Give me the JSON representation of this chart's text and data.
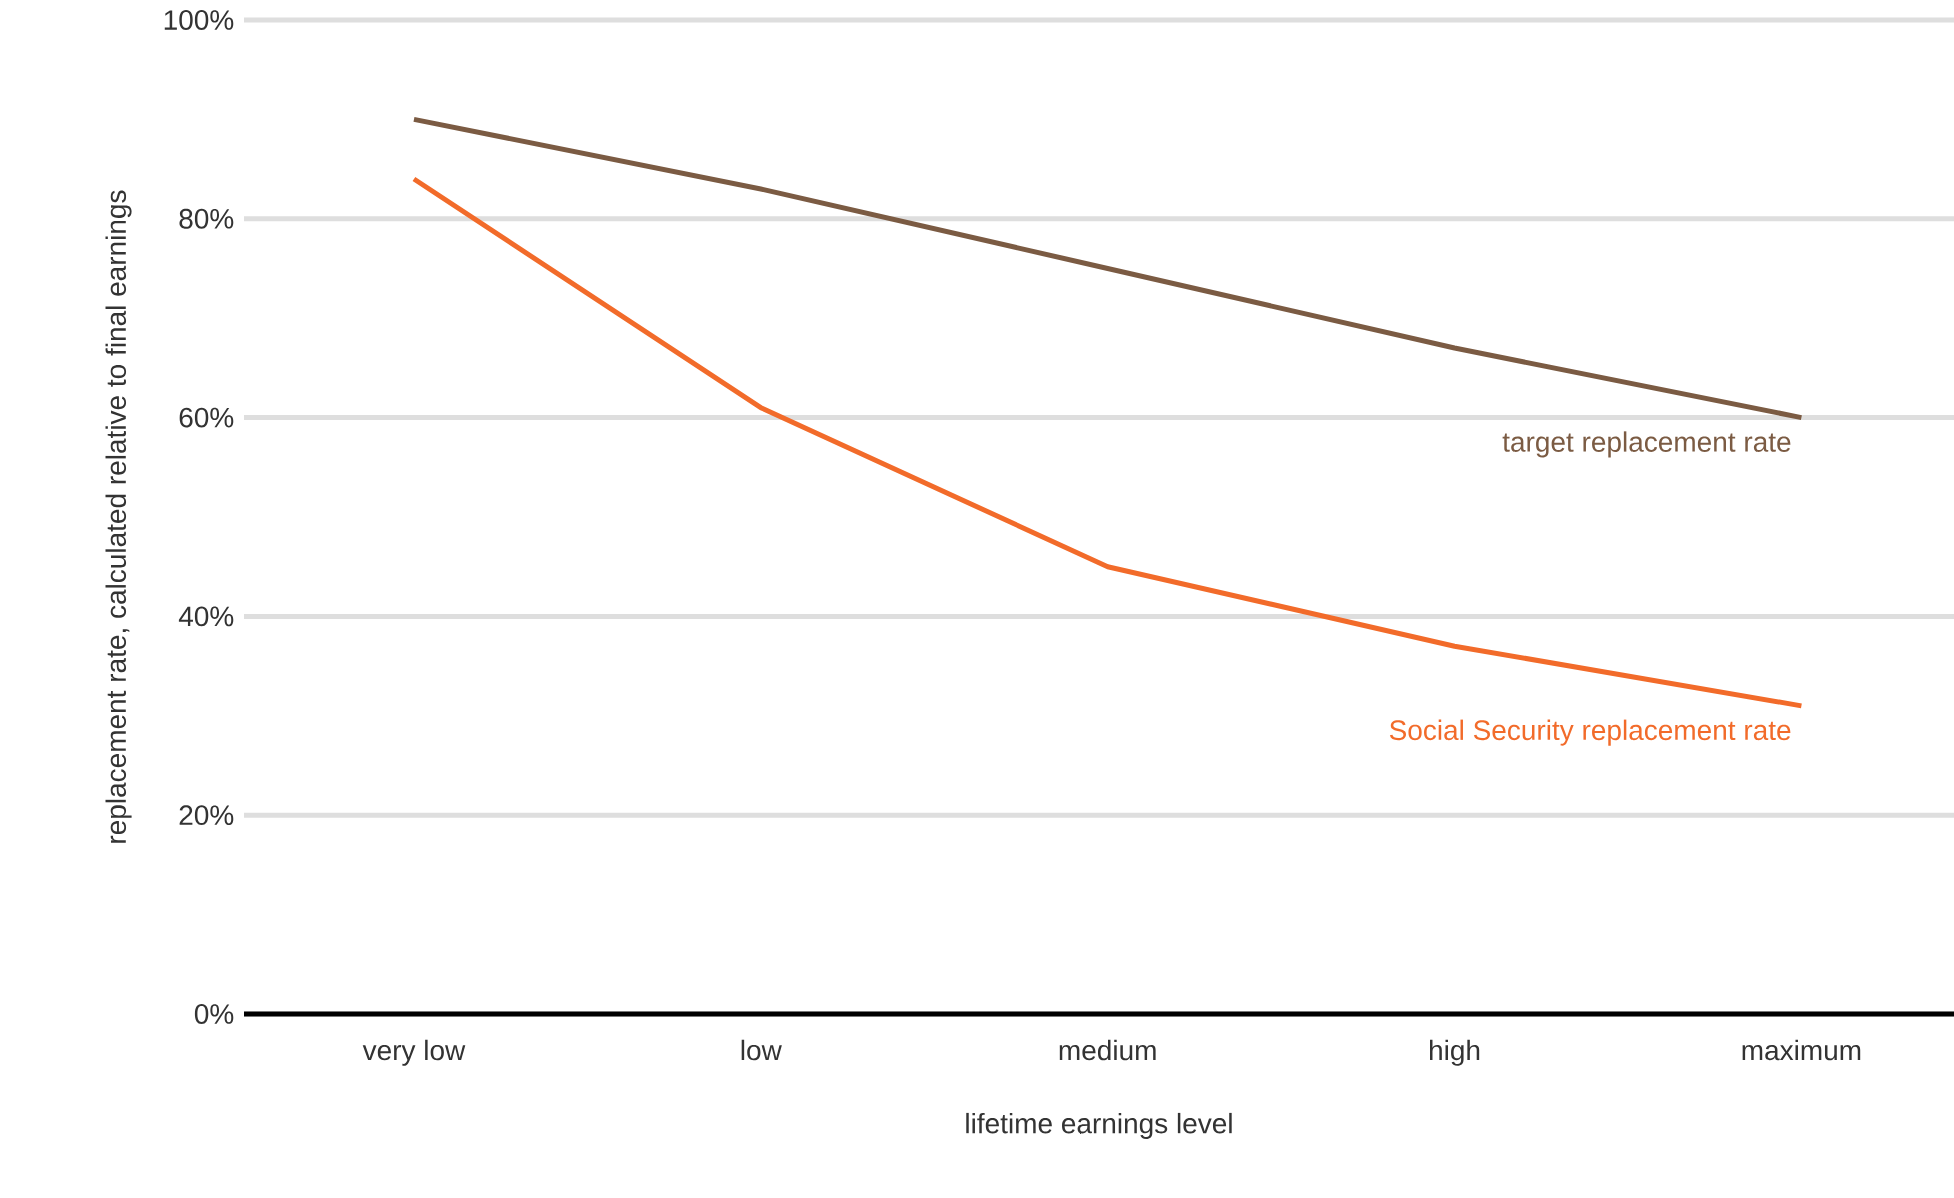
{
  "chart_data": {
    "type": "line",
    "xlabel": "lifetime earnings level",
    "ylabel": "replacement rate, calculated relative to final earnings",
    "categories": [
      "very low",
      "low",
      "medium",
      "high",
      "maximum"
    ],
    "series": [
      {
        "name": "target replacement rate",
        "color": "#7b5b43",
        "values": [
          90,
          83,
          75,
          67,
          60
        ]
      },
      {
        "name": "Social Security replacement rate",
        "color": "#f26b2a",
        "values": [
          84,
          61,
          45,
          37,
          31
        ]
      }
    ],
    "ylim": [
      0,
      100
    ],
    "yticks": [
      {
        "value": 0,
        "label": "0%"
      },
      {
        "value": 20,
        "label": "20%"
      },
      {
        "value": 40,
        "label": "40%"
      },
      {
        "value": 60,
        "label": "60%"
      },
      {
        "value": 80,
        "label": "80%"
      },
      {
        "value": 100,
        "label": "100%"
      }
    ],
    "grid": "y",
    "legend": false,
    "marker": "none",
    "line_style": "solid"
  }
}
